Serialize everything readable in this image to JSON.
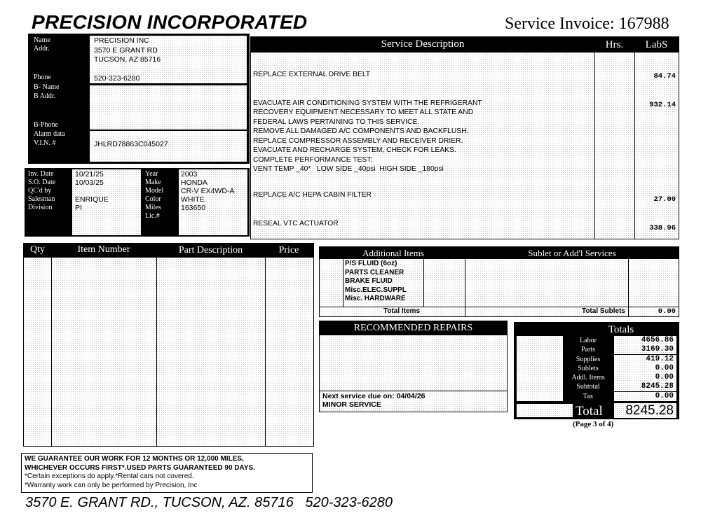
{
  "header": {
    "company": "PRECISION INCORPORATED",
    "invoice_label": "Service Invoice:",
    "invoice_number": "167988"
  },
  "customer": {
    "labels": {
      "name": "Name",
      "addr": "Addr.",
      "phone": "Phone",
      "b_name": "B- Name",
      "b_addr": "B Addr.",
      "b_phone": "B-Phone",
      "alarm": "Alarm data",
      "vin": "V.I.N. #"
    },
    "name": "PRECISION INC",
    "addr1": "3570 E GRANT RD",
    "addr2": "TUCSON, AZ 85716",
    "phone": "520-323-6280",
    "vin": "JHLRD78863C045027"
  },
  "order": {
    "labels": {
      "inv_date": "Inv. Date",
      "so_date": "S.O. Date",
      "qcd": "QC'd by",
      "salesman": "Salesman",
      "division": "Division",
      "year": "Year",
      "make": "Make",
      "model": "Model",
      "color": "Color",
      "miles": "Miles",
      "lic": "Lic.#"
    },
    "inv_date": "10/21/25",
    "so_date": "10/03/25",
    "salesman": "ENRIQUE",
    "division": "PI",
    "year": "2003",
    "make": "HONDA",
    "model": "CR-V EX4WD-A",
    "color": "WHITE",
    "miles": "163650"
  },
  "service": {
    "headers": [
      "Service Description",
      "Hrs.",
      "LabS"
    ],
    "lines": [
      {
        "text": "REPLACE EXTERNAL DRIVE BELT",
        "amount": "84.74"
      },
      {
        "text": "EVACUATE AIR CONDITIONING SYSTEM WITH THE REFRIGERANT",
        "amount": "932.14"
      },
      {
        "text": "RECOVERY EQUIPMENT NECESSARY TO MEET ALL STATE AND",
        "amount": ""
      },
      {
        "text": "FEDERAL LAWS PERTAINING TO THIS SERVICE.",
        "amount": ""
      },
      {
        "text": "REMOVE ALL DAMAGED A/C COMPONENTS AND BACKFLUSH.",
        "amount": ""
      },
      {
        "text": "REPLACE COMPRESSOR ASSEMBLY AND RECEIVER DRIER.",
        "amount": ""
      },
      {
        "text": "EVACUATE AND RECHARGE SYSTEM, CHECK FOR LEAKS.",
        "amount": ""
      },
      {
        "text": "COMPLETE PERFORMANCE TEST:",
        "amount": ""
      },
      {
        "text": "VENT TEMP _40*   LOW SIDE _40psi  HIGH SIDE _180psi",
        "amount": ""
      },
      {
        "text": "REPLACE A/C HEPA CABIN FILTER",
        "amount": "27.00"
      },
      {
        "text": "RESEAL VTC ACTUATOR",
        "amount": "338.96"
      }
    ]
  },
  "parts": {
    "headers": [
      "Qty",
      "Item Number",
      "Part Description",
      "Price"
    ]
  },
  "additional": {
    "header": "Additional Items",
    "items": [
      "P/S FLUID (6oz)",
      "PARTS CLEANER",
      "BRAKE FLUID",
      "Misc.ELEC.SUPPL",
      "Misc. HARDWARE"
    ],
    "total_label": "Total Items"
  },
  "sublet": {
    "header": "Sublet or Add'l Services",
    "total_label": "Total Sublets",
    "total": "0.00"
  },
  "recommended": {
    "header": "RECOMMENDED REPAIRS",
    "next_service": "Next service due on: 04/04/26",
    "service_type": "MINOR SERVICE"
  },
  "totals": {
    "header": "Totals",
    "rows": [
      {
        "label": "Labor",
        "value": "4656.86"
      },
      {
        "label": "Parts",
        "value": "3169.30"
      },
      {
        "label": "Supplies",
        "value": "419.12"
      },
      {
        "label": "Sublets",
        "value": "0.00"
      },
      {
        "label": "Addl. Items",
        "value": "0.00"
      },
      {
        "label": "Subtotal",
        "value": "8245.28"
      },
      {
        "label": "Tax",
        "value": "0.00"
      }
    ],
    "total_label": "Total",
    "total": "8245.28"
  },
  "page": "(Page 3 of 4)",
  "guarantee": [
    "WE GUARANTEE OUR WORK FOR 12 MONTHS OR 12,000 MILES,",
    "WHICHEVER OCCURS FIRST*.USED PARTS GUARANTEED 90 DAYS.",
    "*Certain exceptions do apply.*Rental cars not covered.",
    "*Warranty work can only be performed by Precision, Inc"
  ],
  "footer": {
    "address": "3570 E. GRANT RD., TUCSON, AZ. 85716",
    "phone": "520-323-6280"
  }
}
